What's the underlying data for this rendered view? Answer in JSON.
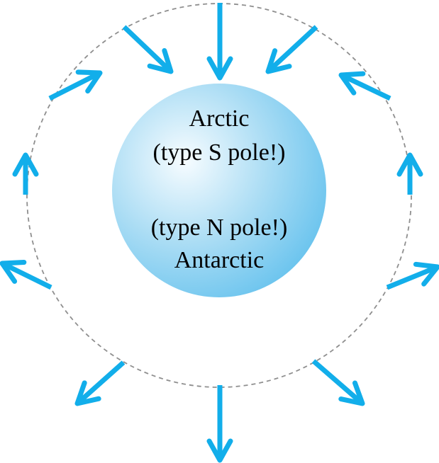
{
  "labels": {
    "arctic": "Arctic",
    "south_type": "(type S pole!)",
    "north_type": "(type N pole!)",
    "antarctic": "Antarctic"
  },
  "colors": {
    "arrow": "#12AEEA",
    "sphere_light": "#F7FCFF",
    "sphere_mid": "#A9DCF4",
    "sphere_dark": "#6BC4EE",
    "orbit_dash": "#8F8F8F"
  },
  "icons": {
    "sphere": "earth-sphere-icon",
    "arrows": "field-arrow-icon"
  }
}
